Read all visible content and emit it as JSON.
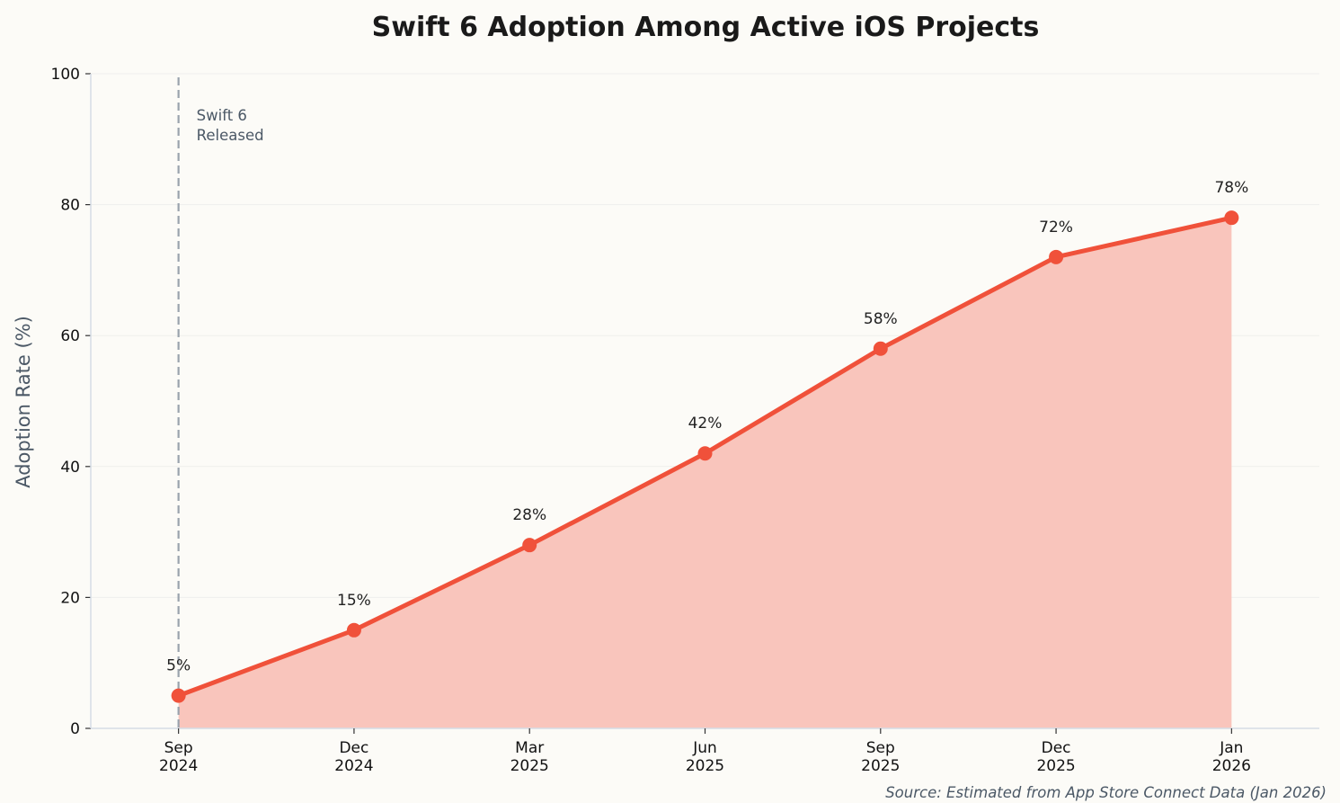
{
  "chart_data": {
    "type": "area",
    "title": "Swift 6 Adoption Among Active iOS Projects",
    "xlabel": "",
    "ylabel": "Adoption Rate (%)",
    "categories": [
      "Sep\n2024",
      "Dec\n2024",
      "Mar\n2025",
      "Jun\n2025",
      "Sep\n2025",
      "Dec\n2025",
      "Jan\n2026"
    ],
    "values": [
      5,
      15,
      28,
      42,
      58,
      72,
      78
    ],
    "data_labels": [
      "5%",
      "15%",
      "28%",
      "42%",
      "58%",
      "72%",
      "78%"
    ],
    "ylim": [
      0,
      100
    ],
    "yticks": [
      0,
      20,
      40,
      60,
      80,
      100
    ],
    "grid": "horizontal",
    "legend": "none",
    "annotation": {
      "text_line1": "Swift 6",
      "text_line2": "Released",
      "at_category": "Sep\n2024"
    },
    "source_note": "Source: Estimated from App Store Connect Data (Jan 2026)",
    "colors": {
      "line": "#f0513a",
      "fill": "#f9c5bc",
      "release_line": "#9aa3ad",
      "annotation_text": "#4b5866",
      "background": "#fcfbf7"
    }
  }
}
